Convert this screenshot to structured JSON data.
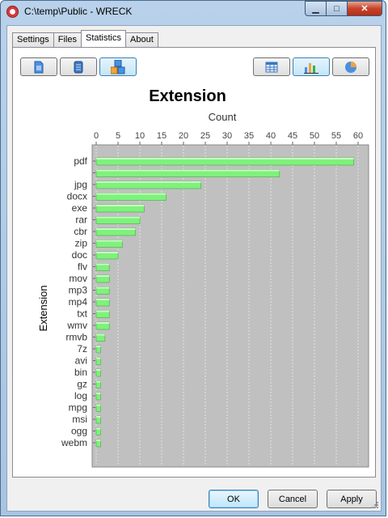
{
  "window": {
    "title": "C:\\temp\\Public - WRECK",
    "minimize": "▁",
    "maximize": "□",
    "close": "✕"
  },
  "tabs": [
    {
      "label": "Settings"
    },
    {
      "label": "Files"
    },
    {
      "label": "Statistics",
      "active": true
    },
    {
      "label": "About"
    }
  ],
  "toolbar": {
    "left": [
      {
        "icon": "document-icon"
      },
      {
        "icon": "file-type-icon"
      },
      {
        "icon": "extension-icon",
        "active": true
      }
    ],
    "right": [
      {
        "icon": "table-icon"
      },
      {
        "icon": "bar-chart-icon",
        "active": true
      },
      {
        "icon": "pie-chart-icon"
      }
    ]
  },
  "buttons": {
    "ok": "OK",
    "cancel": "Cancel",
    "apply": "Apply"
  },
  "colors": {
    "bar": "#7ef27a",
    "plot_bg": "#c0c0c0"
  },
  "chart_data": {
    "type": "bar",
    "orientation": "horizontal",
    "title": "Extension",
    "xlabel": "Count",
    "ylabel": "Extension",
    "xlim": [
      0,
      62
    ],
    "xticks": [
      0,
      5,
      10,
      15,
      20,
      25,
      30,
      35,
      40,
      45,
      50,
      55,
      60
    ],
    "grid": true,
    "categories": [
      "pdf",
      "",
      "jpg",
      "docx",
      "exe",
      "rar",
      "cbr",
      "zip",
      "doc",
      "flv",
      "mov",
      "mp3",
      "mp4",
      "txt",
      "wmv",
      "rmvb",
      "7z",
      "avi",
      "bin",
      "gz",
      "log",
      "mpg",
      "msi",
      "ogg",
      "webm"
    ],
    "values": [
      59,
      42,
      24,
      16,
      11,
      10,
      9,
      6,
      5,
      3,
      3,
      3,
      3,
      3,
      3,
      2,
      1,
      1,
      1,
      1,
      1,
      1,
      1,
      1,
      1
    ]
  }
}
